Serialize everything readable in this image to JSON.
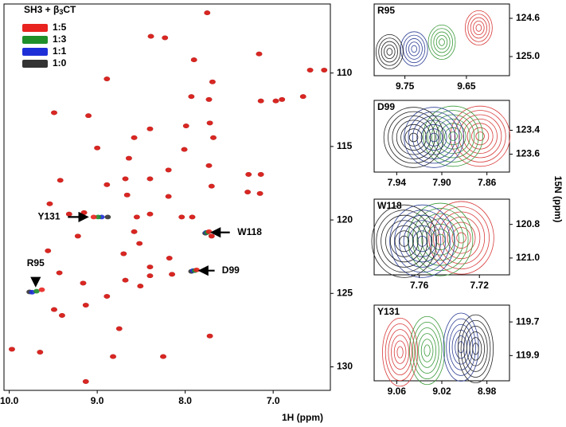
{
  "chart_data": [
    {
      "type": "scatter",
      "legend_title": {
        "main": "SH3 + β",
        "sub": "3",
        "end": "CT"
      },
      "xlabel": "1H (ppm)",
      "ylabel": "15N (ppm)",
      "xlim": [
        10.06,
        6.35
      ],
      "ylim": [
        131.6,
        105.3
      ],
      "xticks": [
        {
          "value": 10,
          "label": "10.0"
        },
        {
          "value": 9,
          "label": "9.0"
        },
        {
          "value": 8,
          "label": "8.0"
        },
        {
          "value": 7,
          "label": "7.0"
        }
      ],
      "yticks": [
        110,
        115,
        120,
        125,
        130
      ],
      "series": [
        {
          "name": "1:5",
          "color": "#e8231f",
          "x": [
            7.75,
            8.39,
            8.23,
            7.9,
            7.16,
            6.58,
            6.42,
            7.69,
            8.89,
            7.93,
            7.73,
            7.14,
            6.97,
            6.9,
            6.66,
            9.49,
            9.1,
            8.4,
            7.99,
            7.72,
            8.58,
            9.0,
            8.01,
            7.68,
            8.19,
            7.73,
            8.64,
            9.42,
            8.89,
            8.4,
            8.68,
            8.19,
            8.66,
            7.7,
            7.28,
            7.14,
            7.29,
            7.15,
            9.54,
            9.15,
            9.32,
            9.04,
            8.55,
            8.4,
            8.04,
            7.92,
            7.73,
            9.22,
            8.58,
            8.52,
            7.7,
            9.56,
            8.7,
            8.18,
            7.87,
            8.4,
            9.43,
            8.4,
            8.68,
            8.15,
            9.16,
            9.63,
            9.49,
            9.4,
            9.13,
            8.89,
            8.51,
            8.75,
            7.72,
            9.97,
            9.65,
            8.82,
            9.13,
            8.25
          ],
          "y": [
            105.9,
            107.5,
            107.6,
            109.1,
            108.7,
            109.8,
            109.8,
            110.6,
            110.4,
            111.6,
            111.8,
            111.9,
            111.9,
            111.8,
            111.6,
            112.7,
            112.9,
            113.8,
            113.6,
            113.4,
            114.4,
            115.1,
            115.2,
            114.4,
            116.6,
            116.3,
            115.8,
            117.3,
            117.6,
            117.2,
            117.2,
            118.4,
            118.3,
            117.7,
            116.9,
            116.9,
            118.1,
            118.2,
            118.9,
            119.5,
            119.6,
            119.8,
            119.8,
            119.6,
            119.8,
            119.8,
            120.8,
            121.1,
            120.8,
            121.6,
            121.1,
            122.1,
            122.3,
            122.6,
            123.4,
            123.2,
            123.6,
            123.8,
            124.1,
            123.7,
            124.3,
            124.75,
            126.1,
            126.5,
            125.8,
            125.2,
            124.5,
            127.4,
            127.9,
            128.8,
            129.0,
            129.3,
            131.0,
            129.3
          ]
        },
        {
          "name": "1:3",
          "color": "#1f8f2a",
          "x": [
            8.99,
            7.75,
            7.89,
            9.69
          ],
          "y": [
            119.8,
            120.85,
            123.45,
            124.85
          ]
        },
        {
          "name": "1:1",
          "color": "#1f2fd8",
          "x": [
            8.95,
            7.76,
            7.91,
            9.74
          ],
          "y": [
            119.8,
            120.85,
            123.45,
            124.92
          ]
        },
        {
          "name": "1:0",
          "color": "#333333",
          "x": [
            7.75,
            8.39,
            8.23,
            7.9,
            7.16,
            6.58,
            6.42,
            7.69,
            8.89,
            7.93,
            7.73,
            7.14,
            6.97,
            6.9,
            6.66,
            9.49,
            9.1,
            8.4,
            7.99,
            7.72,
            8.58,
            9.0,
            8.01,
            7.68,
            8.19,
            7.73,
            8.64,
            9.42,
            8.89,
            8.4,
            8.68,
            8.19,
            8.66,
            7.7,
            7.28,
            7.14,
            7.29,
            7.15,
            9.54,
            9.15,
            9.32,
            8.88,
            8.55,
            8.4,
            8.04,
            7.92,
            7.77,
            9.22,
            8.58,
            8.52,
            7.7,
            9.56,
            8.7,
            8.18,
            7.93,
            8.4,
            9.43,
            8.4,
            8.68,
            8.15,
            9.16,
            9.77,
            9.49,
            9.4,
            9.13,
            8.89,
            8.51,
            8.75,
            7.72,
            9.97,
            9.65,
            8.82,
            9.13,
            8.25
          ],
          "y": [
            105.9,
            107.5,
            107.6,
            109.1,
            108.7,
            109.8,
            109.8,
            110.6,
            110.4,
            111.6,
            111.8,
            111.9,
            111.9,
            111.8,
            111.6,
            112.7,
            112.9,
            113.8,
            113.6,
            113.4,
            114.4,
            115.1,
            115.2,
            114.4,
            116.6,
            116.3,
            115.8,
            117.3,
            117.6,
            117.2,
            117.2,
            118.4,
            118.3,
            117.7,
            116.9,
            116.9,
            118.1,
            118.2,
            118.9,
            119.5,
            119.6,
            119.8,
            119.8,
            119.6,
            119.8,
            119.8,
            120.9,
            121.1,
            120.8,
            121.6,
            121.1,
            122.1,
            122.3,
            122.6,
            123.5,
            123.2,
            123.6,
            123.8,
            124.1,
            123.7,
            124.3,
            124.9,
            126.1,
            126.5,
            125.8,
            125.2,
            124.5,
            127.4,
            127.9,
            128.8,
            129.0,
            129.3,
            131.0,
            129.3
          ]
        }
      ],
      "annotations": [
        {
          "text": "R95",
          "x": 9.7,
          "y": 124.8
        },
        {
          "text": "Y131",
          "x": 9.06,
          "y": 119.8
        },
        {
          "text": "W118",
          "x": 7.75,
          "y": 120.85
        },
        {
          "text": "D99",
          "x": 7.89,
          "y": 123.45
        }
      ]
    },
    {
      "type": "contour",
      "title": "R95",
      "xlim": [
        9.8,
        9.58
      ],
      "ylim": [
        125.2,
        124.45
      ],
      "xticks": [
        9.75,
        9.65
      ],
      "yticks": [
        124.6,
        {
          "value": 125,
          "label": "125.0"
        }
      ],
      "series": [
        {
          "color": "#d93a3a",
          "x": [
            9.63
          ],
          "y": [
            124.7
          ]
        },
        {
          "color": "#3a9a3a",
          "x": [
            9.69
          ],
          "y": [
            124.85
          ]
        },
        {
          "color": "#2d3f96",
          "x": [
            9.735
          ],
          "y": [
            124.92
          ]
        },
        {
          "color": "#222222",
          "x": [
            9.775
          ],
          "y": [
            124.95
          ]
        }
      ]
    },
    {
      "type": "contour",
      "title": "D99",
      "xlim": [
        7.96,
        7.84
      ],
      "ylim": [
        123.75,
        123.15
      ],
      "xticks": [
        7.94,
        {
          "value": 7.9,
          "label": "7.90"
        },
        7.86
      ],
      "yticks": [
        123.4,
        123.6
      ],
      "series": [
        {
          "color": "#d93a3a",
          "x": [
            7.866
          ],
          "y": [
            123.45
          ]
        },
        {
          "color": "#3a9a3a",
          "x": [
            7.89
          ],
          "y": [
            123.45
          ]
        },
        {
          "color": "#2d3f96",
          "x": [
            7.907
          ],
          "y": [
            123.46
          ]
        },
        {
          "color": "#222222",
          "x": [
            7.925
          ],
          "y": [
            123.46
          ]
        }
      ]
    },
    {
      "type": "contour",
      "title": "W118",
      "xlim": [
        7.79,
        7.7
      ],
      "ylim": [
        121.1,
        120.65
      ],
      "xticks": [
        7.76,
        7.72
      ],
      "yticks": [
        120.8,
        {
          "value": 121,
          "label": "121.0"
        }
      ],
      "series": [
        {
          "color": "#d93a3a",
          "x": [
            7.732
          ],
          "y": [
            120.88
          ]
        },
        {
          "color": "#3a9a3a",
          "x": [
            7.746
          ],
          "y": [
            120.89
          ]
        },
        {
          "color": "#2d3f96",
          "x": [
            7.758
          ],
          "y": [
            120.9
          ]
        },
        {
          "color": "#222222",
          "x": [
            7.77
          ],
          "y": [
            120.9
          ]
        }
      ]
    },
    {
      "type": "contour",
      "title": "Y131",
      "xlim": [
        9.08,
        8.96
      ],
      "ylim": [
        120.05,
        119.6
      ],
      "xticks": [
        9.06,
        9.02,
        8.98
      ],
      "yticks": [
        119.7,
        119.9
      ],
      "series": [
        {
          "color": "#d93a3a",
          "x": [
            9.057
          ],
          "y": [
            119.88
          ]
        },
        {
          "color": "#3a9a3a",
          "x": [
            9.033
          ],
          "y": [
            119.87
          ]
        },
        {
          "color": "#2d3f96",
          "x": [
            9.003
          ],
          "y": [
            119.85
          ]
        },
        {
          "color": "#222222",
          "x": [
            8.99
          ],
          "y": [
            119.86
          ]
        }
      ]
    }
  ]
}
